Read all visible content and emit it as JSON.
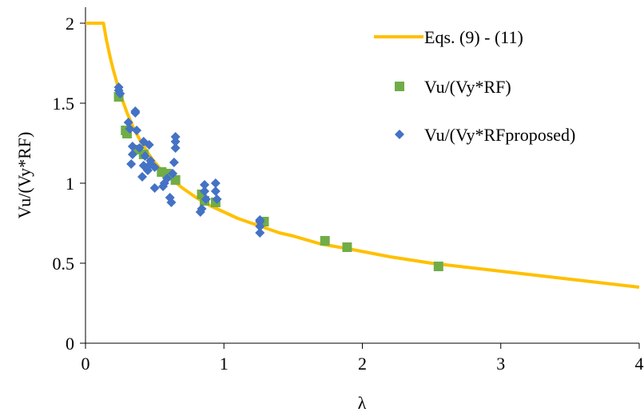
{
  "chart_data": {
    "type": "scatter",
    "xlabel": "λ",
    "ylabel": "Vu/(Vy*RF)",
    "xlim": [
      0,
      4
    ],
    "ylim": [
      0,
      2.1
    ],
    "x_ticks": [
      0,
      1,
      2,
      3,
      4
    ],
    "y_ticks": [
      0,
      0.5,
      1,
      1.5,
      2
    ],
    "x_tick_labels": [
      "0",
      "1",
      "2",
      "3",
      "4"
    ],
    "y_tick_labels": [
      "0",
      "0.5",
      "1",
      "1.5",
      "2"
    ],
    "grid": false,
    "legend_position": "top-right",
    "series": [
      {
        "name": "Eqs. (9) - (11)",
        "kind": "line",
        "color": "#FFC000",
        "x": [
          0,
          0.13,
          0.15,
          0.18,
          0.2,
          0.23,
          0.25,
          0.3,
          0.35,
          0.4,
          0.45,
          0.5,
          0.55,
          0.6,
          0.7,
          0.8,
          0.9,
          1.0,
          1.1,
          1.2,
          1.3,
          1.4,
          1.5,
          1.7,
          1.9,
          2.2,
          2.5,
          2.8,
          3.0,
          3.3,
          3.6,
          4.0
        ],
        "y": [
          2.0,
          2.0,
          1.9,
          1.78,
          1.71,
          1.62,
          1.56,
          1.44,
          1.34,
          1.26,
          1.19,
          1.13,
          1.08,
          1.04,
          0.97,
          0.91,
          0.86,
          0.82,
          0.78,
          0.75,
          0.72,
          0.69,
          0.67,
          0.62,
          0.59,
          0.54,
          0.5,
          0.47,
          0.45,
          0.42,
          0.39,
          0.35
        ]
      },
      {
        "name": "Vu/(Vy*RF)",
        "kind": "marker",
        "marker": "square",
        "color": "#70AD47",
        "x": [
          0.24,
          0.29,
          0.3,
          0.38,
          0.42,
          0.55,
          0.59,
          0.65,
          0.84,
          0.86,
          0.94,
          1.29,
          1.73,
          1.89,
          2.55
        ],
        "y": [
          1.54,
          1.33,
          1.31,
          1.21,
          1.18,
          1.07,
          1.06,
          1.02,
          0.93,
          0.89,
          0.88,
          0.76,
          0.64,
          0.6,
          0.48
        ]
      },
      {
        "name": "Vu/(Vy*RFproposed)",
        "kind": "marker",
        "marker": "diamond",
        "color": "#4472C4",
        "x": [
          0.24,
          0.24,
          0.25,
          0.31,
          0.32,
          0.33,
          0.34,
          0.34,
          0.36,
          0.36,
          0.37,
          0.39,
          0.41,
          0.42,
          0.42,
          0.43,
          0.45,
          0.46,
          0.47,
          0.47,
          0.5,
          0.5,
          0.56,
          0.57,
          0.59,
          0.61,
          0.62,
          0.63,
          0.64,
          0.65,
          0.65,
          0.65,
          0.83,
          0.84,
          0.86,
          0.86,
          0.87,
          0.94,
          0.94,
          0.95,
          1.26,
          1.26,
          1.26,
          1.26
        ],
        "y": [
          1.6,
          1.58,
          1.56,
          1.38,
          1.34,
          1.12,
          1.18,
          1.23,
          1.45,
          1.44,
          1.33,
          1.22,
          1.04,
          1.11,
          1.26,
          1.17,
          1.08,
          1.24,
          1.12,
          1.14,
          1.1,
          0.97,
          0.98,
          1.0,
          1.03,
          0.91,
          0.88,
          1.06,
          1.13,
          1.29,
          1.26,
          1.22,
          0.82,
          0.84,
          0.95,
          0.99,
          0.9,
          1.0,
          0.95,
          0.9,
          0.77,
          0.76,
          0.73,
          0.69
        ]
      }
    ]
  }
}
